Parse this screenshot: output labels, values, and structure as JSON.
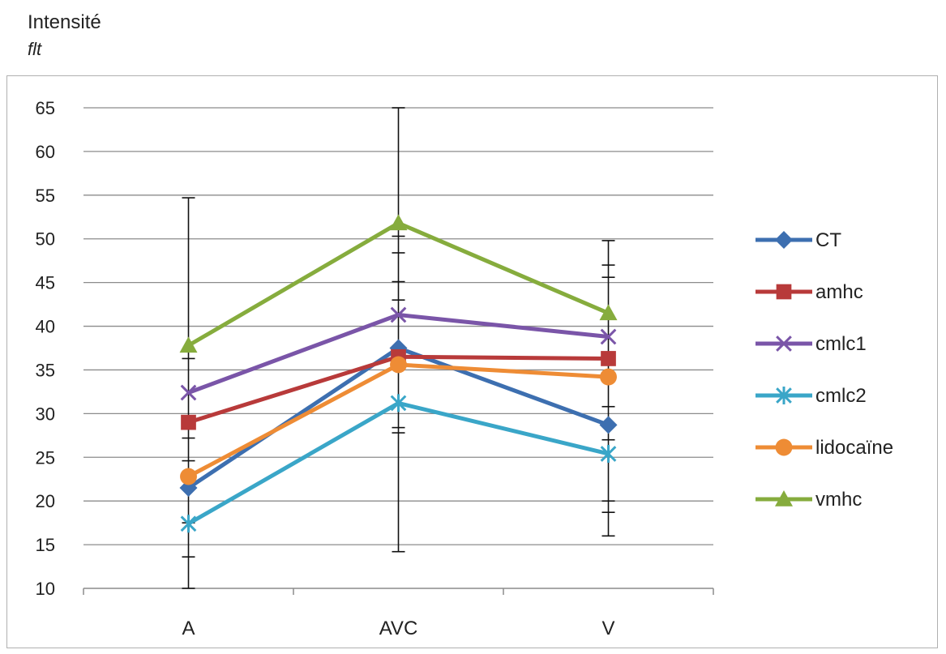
{
  "chart_data": {
    "type": "line",
    "ylabel": "Intensité",
    "ylabel_sub": "flt",
    "categories": [
      "A",
      "AVC",
      "V"
    ],
    "ylim": [
      10,
      65
    ],
    "ytick_step": 5,
    "grid": true,
    "legend_position": "right",
    "series": [
      {
        "name": "CT",
        "color": "#3d6fb0",
        "marker": "diamond",
        "values": [
          21.5,
          37.5,
          28.7
        ]
      },
      {
        "name": "amhc",
        "color": "#b83a3a",
        "marker": "square",
        "values": [
          29.0,
          36.5,
          36.3
        ]
      },
      {
        "name": "cmlc1",
        "color": "#7a55a8",
        "marker": "x",
        "values": [
          32.4,
          41.3,
          38.8
        ]
      },
      {
        "name": "cmlc2",
        "color": "#3aa6c8",
        "marker": "asterisk",
        "values": [
          17.4,
          31.2,
          25.4
        ]
      },
      {
        "name": "lidocaïne",
        "color": "#ee8c35",
        "marker": "circle",
        "values": [
          22.8,
          35.6,
          34.2
        ]
      },
      {
        "name": "vmhc",
        "color": "#86ac3d",
        "marker": "triangle",
        "values": [
          37.8,
          51.8,
          41.5
        ]
      }
    ],
    "error_bars": [
      {
        "category": "A",
        "low": 10.0,
        "high": 54.7,
        "ticks": [
          10.0,
          13.6,
          17.5,
          24.6,
          27.2,
          36.3,
          54.7
        ]
      },
      {
        "category": "AVC",
        "low": 14.2,
        "high": 65.0,
        "ticks": [
          14.2,
          27.8,
          28.4,
          43.0,
          45.1,
          48.4,
          50.3,
          65.0
        ]
      },
      {
        "category": "V",
        "low": 16.0,
        "high": 49.8,
        "ticks": [
          16.0,
          18.7,
          20.0,
          27.0,
          30.8,
          45.6,
          47.0,
          49.8
        ]
      }
    ]
  }
}
